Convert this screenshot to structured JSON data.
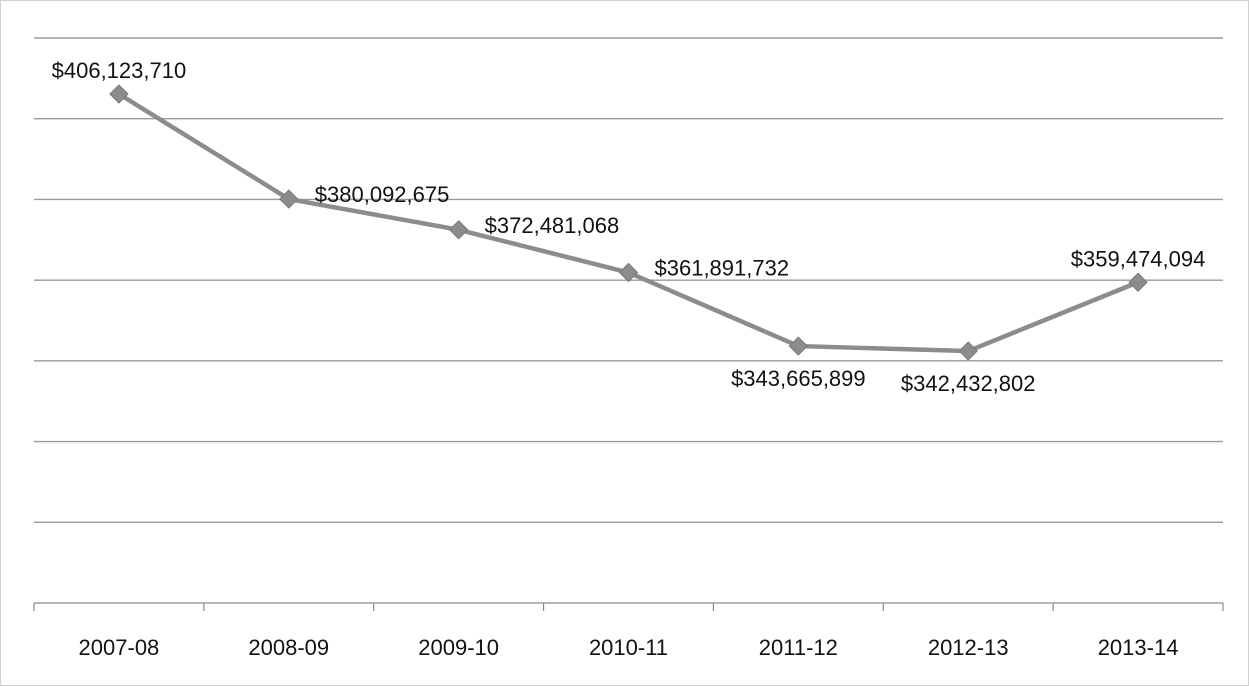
{
  "chart_data": {
    "type": "line",
    "title": "",
    "xlabel": "",
    "ylabel": "",
    "categories": [
      "2007-08",
      "2008-09",
      "2009-10",
      "2010-11",
      "2011-12",
      "2012-13",
      "2013-14"
    ],
    "series": [
      {
        "values": [
          406123710,
          380092675,
          372481068,
          361891732,
          343665899,
          342432802,
          359474094
        ],
        "labels": [
          "$406,123,710",
          "$380,092,675",
          "$372,481,068",
          "$361,891,732",
          "$343,665,899",
          "$342,432,802",
          "$359,474,094"
        ]
      }
    ],
    "ylim": [
      280000000,
      420000000
    ],
    "y_gridlines": [
      280000000,
      300000000,
      320000000,
      340000000,
      360000000,
      380000000,
      400000000,
      420000000
    ],
    "grid": true,
    "legend": "none",
    "marker": "diamond",
    "line_color": "#8c8c8c",
    "marker_color": "#8c8c8c",
    "label_positions": [
      "above",
      "right",
      "right",
      "right",
      "below",
      "below",
      "above"
    ]
  }
}
